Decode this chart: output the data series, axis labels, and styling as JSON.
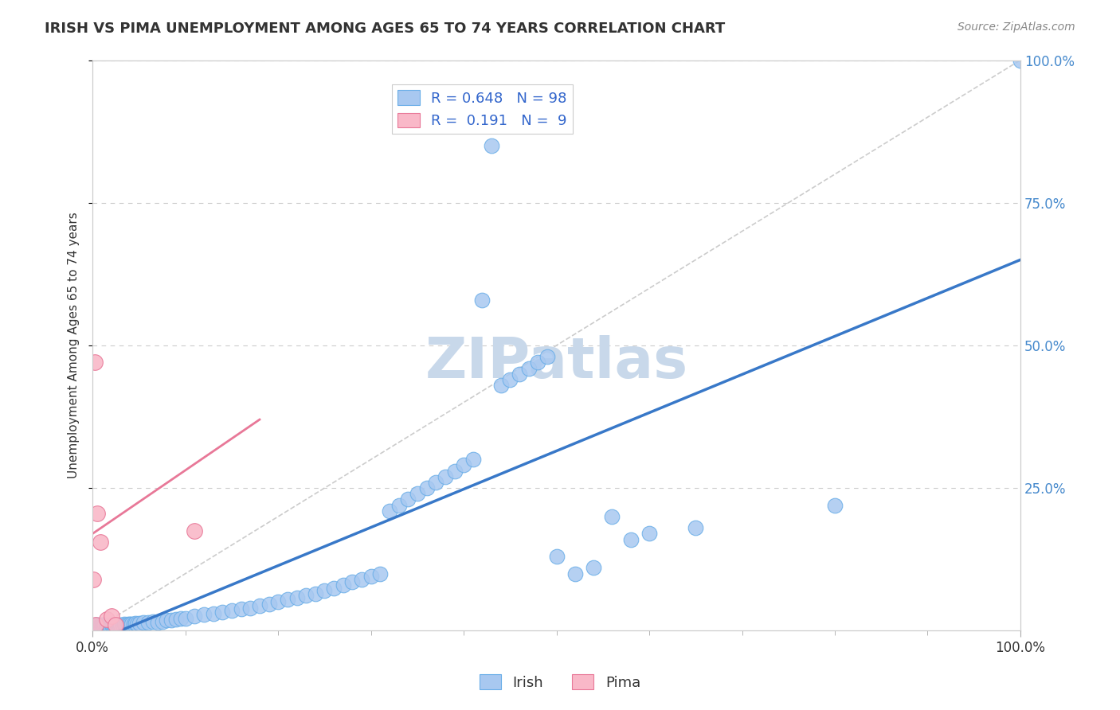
{
  "title": "IRISH VS PIMA UNEMPLOYMENT AMONG AGES 65 TO 74 YEARS CORRELATION CHART",
  "source": "Source: ZipAtlas.com",
  "ylabel": "Unemployment Among Ages 65 to 74 years",
  "xlim": [
    0,
    1
  ],
  "ylim": [
    0,
    1
  ],
  "grid_color": "#cccccc",
  "background_color": "#ffffff",
  "irish_color": "#a8c8f0",
  "irish_edge_color": "#6aaee8",
  "pima_color": "#f9b8c8",
  "pima_edge_color": "#e87898",
  "irish_line_color": "#3878c8",
  "pima_line_color": "#e87898",
  "diag_line_color": "#cccccc",
  "legend_irish_R": "0.648",
  "legend_irish_N": "98",
  "legend_pima_R": "0.191",
  "legend_pima_N": "9",
  "irish_scatter_x": [
    0.001,
    0.002,
    0.003,
    0.004,
    0.005,
    0.006,
    0.007,
    0.008,
    0.009,
    0.01,
    0.011,
    0.012,
    0.013,
    0.014,
    0.015,
    0.016,
    0.017,
    0.018,
    0.019,
    0.02,
    0.021,
    0.022,
    0.023,
    0.024,
    0.025,
    0.026,
    0.027,
    0.028,
    0.029,
    0.03,
    0.032,
    0.034,
    0.036,
    0.038,
    0.04,
    0.042,
    0.044,
    0.046,
    0.048,
    0.05,
    0.055,
    0.06,
    0.065,
    0.07,
    0.075,
    0.08,
    0.085,
    0.09,
    0.095,
    0.1,
    0.11,
    0.12,
    0.13,
    0.14,
    0.15,
    0.16,
    0.17,
    0.18,
    0.19,
    0.2,
    0.21,
    0.22,
    0.23,
    0.24,
    0.25,
    0.26,
    0.27,
    0.28,
    0.29,
    0.3,
    0.31,
    0.32,
    0.33,
    0.34,
    0.35,
    0.36,
    0.37,
    0.38,
    0.39,
    0.4,
    0.41,
    0.42,
    0.43,
    0.44,
    0.45,
    0.46,
    0.47,
    0.48,
    0.49,
    0.5,
    0.52,
    0.54,
    0.56,
    0.58,
    0.6,
    0.65,
    0.8,
    1.0
  ],
  "irish_scatter_y": [
    0.008,
    0.009,
    0.01,
    0.008,
    0.009,
    0.01,
    0.008,
    0.009,
    0.01,
    0.009,
    0.01,
    0.009,
    0.01,
    0.008,
    0.009,
    0.01,
    0.009,
    0.01,
    0.009,
    0.01,
    0.009,
    0.01,
    0.009,
    0.01,
    0.009,
    0.01,
    0.009,
    0.01,
    0.009,
    0.01,
    0.01,
    0.011,
    0.01,
    0.011,
    0.012,
    0.011,
    0.012,
    0.013,
    0.012,
    0.013,
    0.014,
    0.015,
    0.016,
    0.015,
    0.016,
    0.018,
    0.019,
    0.02,
    0.021,
    0.022,
    0.025,
    0.028,
    0.03,
    0.032,
    0.035,
    0.038,
    0.04,
    0.043,
    0.046,
    0.05,
    0.055,
    0.058,
    0.062,
    0.065,
    0.07,
    0.075,
    0.08,
    0.085,
    0.09,
    0.095,
    0.1,
    0.21,
    0.22,
    0.23,
    0.24,
    0.25,
    0.26,
    0.27,
    0.28,
    0.29,
    0.3,
    0.58,
    0.85,
    0.43,
    0.44,
    0.45,
    0.46,
    0.47,
    0.48,
    0.13,
    0.1,
    0.11,
    0.2,
    0.16,
    0.17,
    0.18,
    0.22,
    1.0
  ],
  "pima_scatter_x": [
    0.001,
    0.002,
    0.003,
    0.005,
    0.008,
    0.015,
    0.02,
    0.025,
    0.11
  ],
  "pima_scatter_y": [
    0.09,
    0.47,
    0.01,
    0.205,
    0.155,
    0.02,
    0.025,
    0.01,
    0.175
  ],
  "irish_line_x": [
    0.0,
    1.0
  ],
  "irish_line_y": [
    -0.02,
    0.65
  ],
  "pima_line_x": [
    0.0,
    0.18
  ],
  "pima_line_y": [
    0.17,
    0.37
  ],
  "ytick_positions": [
    0.25,
    0.5,
    0.75,
    1.0
  ],
  "ytick_labels": [
    "25.0%",
    "50.0%",
    "75.0%",
    "100.0%"
  ],
  "xtick_positions": [
    0.0,
    1.0
  ],
  "xtick_labels": [
    "0.0%",
    "100.0%"
  ],
  "watermark": "ZIPatlas",
  "watermark_color": "#c8d8ea",
  "watermark_fontsize": 52
}
